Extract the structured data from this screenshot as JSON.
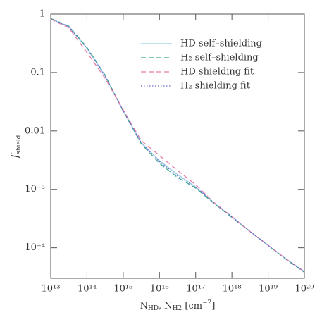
{
  "chart_data": {
    "type": "line",
    "xlabel": [
      "N",
      "HD",
      ", N",
      "H2",
      " [cm",
      "−2",
      "]"
    ],
    "ylabel": [
      "f",
      "shield"
    ],
    "x": [
      10000000000000.0,
      31600000000000.0,
      100000000000000.0,
      316000000000000.0,
      1000000000000000.0,
      3160000000000000.0,
      1e+16,
      3.16e+16,
      1e+17,
      3.16e+17,
      1e+18,
      3.16e+18,
      1e+19,
      3.16e+19,
      1e+20
    ],
    "series": [
      {
        "name": "HD self–shielding",
        "color": "#9ccfe8",
        "style": "solid",
        "values": [
          0.83,
          0.6,
          0.26,
          0.087,
          0.022,
          0.0063,
          0.0031,
          0.0018,
          0.0011,
          0.00059,
          0.00034,
          0.00019,
          0.00011,
          6.4e-05,
          3.9e-05
        ]
      },
      {
        "name": "H₂ self–shielding",
        "color": "#3aa88a",
        "style": "dashed",
        "values": [
          0.84,
          0.62,
          0.27,
          0.09,
          0.022,
          0.006,
          0.0028,
          0.0016,
          0.00105,
          0.00058,
          0.00033,
          0.00019,
          0.00011,
          6.3e-05,
          3.8e-05
        ]
      },
      {
        "name": "HD shielding fit",
        "color": "#e87aa8",
        "style": "dashed",
        "values": [
          0.82,
          0.58,
          0.22,
          0.08,
          0.023,
          0.0068,
          0.0038,
          0.0021,
          0.0012,
          0.0006,
          0.00034,
          0.00019,
          0.00011,
          6.4e-05,
          3.9e-05
        ]
      },
      {
        "name": "H₂ shielding fit",
        "color": "#6b6bd0",
        "style": "dotted",
        "values": [
          0.84,
          0.61,
          0.26,
          0.088,
          0.022,
          0.0062,
          0.003,
          0.0017,
          0.0011,
          0.00059,
          0.00034,
          0.00019,
          0.00011,
          6.4e-05,
          3.9e-05
        ]
      }
    ],
    "xscale": "log",
    "yscale": "log",
    "xlim": [
      10000000000000.0,
      1e+20
    ],
    "ylim": [
      3e-05,
      1
    ],
    "xticks": [
      {
        "value": 10000000000000.0,
        "label": "10¹³"
      },
      {
        "value": 100000000000000.0,
        "label": "10¹⁴"
      },
      {
        "value": 1000000000000000.0,
        "label": "10¹⁵"
      },
      {
        "value": 1e+16,
        "label": "10¹⁶"
      },
      {
        "value": 1e+17,
        "label": "10¹⁷"
      },
      {
        "value": 1e+18,
        "label": "10¹⁸"
      },
      {
        "value": 1e+19,
        "label": "10¹⁹"
      },
      {
        "value": 1e+20,
        "label": "10²⁰"
      }
    ],
    "yticks": [
      1,
      0.1,
      0.01,
      {
        "value": 0.001,
        "label": "10⁻³"
      },
      {
        "value": 0.0001,
        "label": "10⁻⁴"
      }
    ],
    "grid": false,
    "legend": "upper right"
  }
}
